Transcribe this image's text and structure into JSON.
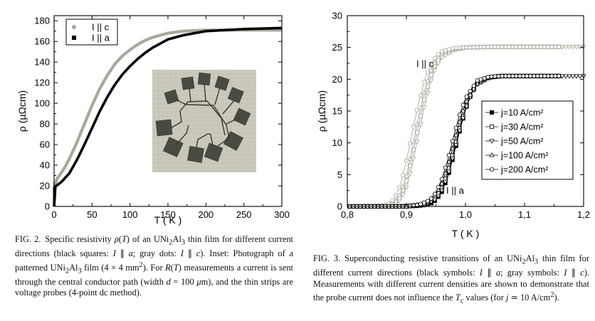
{
  "figures": {
    "fig2": {
      "label": "FIG. 2.",
      "caption_html": "Specific resistivity <i>ρ</i>(<i>T</i>) of an UNi<sub>2</sub>Al<sub>3</sub> thin film for different current directions (black squares: <i>I</i> ∥ <i>a</i>; gray dots: <i>I</i> ∥ <i>c</i>). Inset: Photograph of a patterned UNi<sub>2</sub>Al<sub>3</sub> film (4 × 4 mm<sup>2</sup>). For <i>R</i>(<i>T</i>) measurements a current is sent through the central conductor path (width <i>d</i> = 100 <i>μ</i>m), and the thin strips are voltage probes (4-point dc method)."
    },
    "fig3": {
      "label": "FIG. 3.",
      "caption_html": "Superconducting resistive transitions of an UNi<sub>2</sub>Al<sub>3</sub> thin film for different current directions (black symbols: <i>I</i> ∥ <i>a</i>; gray symbols: <i>I</i> ∥ <i>c</i>). Measurements with different current densities are shown to demonstrate that the probe current does not influence the <i>T</i><sub>c</sub> values (for <i>j</i> ≃ 10 A/cm<sup>2</sup>)."
    }
  },
  "colors": {
    "black": "#000000",
    "gray": "#a8a99a"
  },
  "chart_data": [
    {
      "type": "line",
      "xlabel": "T ( K )",
      "ylabel": "ρ (µΩcm)",
      "xlim": [
        0,
        300
      ],
      "ylim": [
        0,
        185
      ],
      "xticks": [
        "0",
        "50",
        "100",
        "150",
        "200",
        "250",
        "300"
      ],
      "yticks": [
        "0",
        "20",
        "40",
        "60",
        "80",
        "100",
        "120",
        "140",
        "160",
        "180"
      ],
      "legend_position": "top-left",
      "series": [
        {
          "name": "I || c",
          "marker": "circle",
          "color": "#a8a99a",
          "x": [
            0,
            2,
            5,
            10,
            15,
            20,
            30,
            40,
            50,
            60,
            70,
            80,
            90,
            100,
            110,
            120,
            130,
            140,
            150,
            170,
            200,
            250,
            300
          ],
          "y": [
            0,
            24,
            28,
            33,
            39,
            46,
            62,
            80,
            98,
            114,
            127,
            138,
            146,
            152,
            157,
            161,
            164,
            166,
            168,
            170,
            171,
            171,
            171
          ]
        },
        {
          "name": "I || a",
          "marker": "square",
          "color": "#000000",
          "x": [
            0,
            1,
            5,
            10,
            20,
            30,
            40,
            50,
            60,
            70,
            80,
            90,
            100,
            110,
            120,
            130,
            140,
            150,
            170,
            200,
            250,
            300
          ],
          "y": [
            0,
            19,
            21,
            24,
            32,
            45,
            60,
            76,
            92,
            106,
            118,
            128,
            136,
            143,
            149,
            154,
            158,
            162,
            166,
            170,
            172,
            173
          ]
        }
      ]
    },
    {
      "type": "line",
      "xlabel": "T ( K )",
      "ylabel": "ρ (µΩcm)",
      "xlim": [
        0.8,
        1.2
      ],
      "ylim": [
        0,
        30
      ],
      "xticks": [
        "0,8",
        "0,9",
        "1,0",
        "1,1",
        "1,2"
      ],
      "yticks": [
        "0",
        "5",
        "10",
        "15",
        "20",
        "25",
        "30"
      ],
      "legend_position": "center-right",
      "annotations": [
        "I || c",
        "I || a"
      ],
      "series": [
        {
          "name": "j=10 A/cm²",
          "marker": "square-filled",
          "group": "I || a",
          "x": [
            0.8,
            0.88,
            0.92,
            0.94,
            0.95,
            0.96,
            0.97,
            0.98,
            0.99,
            1.0,
            1.01,
            1.02,
            1.04,
            1.06,
            1.1,
            1.16
          ],
          "y": [
            0.0,
            0.0,
            0.1,
            0.4,
            1.0,
            2.3,
            4.6,
            8.0,
            11.8,
            15.2,
            17.8,
            19.3,
            20.3,
            20.5,
            20.5,
            20.5
          ]
        },
        {
          "name": "j=30 A/cm²",
          "marker": "square-open",
          "group": "I || c",
          "x": [
            0.8,
            0.87,
            0.88,
            0.89,
            0.9,
            0.91,
            0.92,
            0.93,
            0.94,
            0.95,
            0.96,
            0.98,
            1.0,
            1.05,
            1.1,
            1.16
          ],
          "y": [
            0.0,
            0.1,
            0.5,
            1.6,
            4.0,
            8.0,
            12.5,
            16.8,
            20.2,
            22.5,
            23.8,
            24.7,
            25.0,
            25.1,
            25.1,
            25.1
          ]
        },
        {
          "name": "j=50 A/cm²",
          "marker": "triangle-down-open",
          "group": "I || c",
          "x": [
            0.8,
            0.87,
            0.88,
            0.89,
            0.9,
            0.91,
            0.92,
            0.93,
            0.94,
            0.95,
            0.96,
            0.98,
            1.0,
            1.05,
            1.1,
            1.2
          ],
          "y": [
            0.0,
            0.0,
            0.3,
            1.1,
            3.0,
            6.6,
            11.1,
            15.6,
            19.3,
            21.9,
            23.4,
            24.6,
            25.0,
            25.1,
            25.1,
            25.1
          ]
        },
        {
          "name": "j=100 A/cm²",
          "marker": "triangle-up-open",
          "group": "I || c",
          "x": [
            0.8,
            0.87,
            0.88,
            0.89,
            0.9,
            0.91,
            0.92,
            0.93,
            0.94,
            0.95,
            0.96,
            0.98,
            1.0,
            1.05,
            1.1,
            1.16
          ],
          "y": [
            0.0,
            0.1,
            0.6,
            2.0,
            4.8,
            9.2,
            13.8,
            17.9,
            21.0,
            23.0,
            24.1,
            24.8,
            25.0,
            25.1,
            25.1,
            25.1
          ]
        },
        {
          "name": "j=200 A/cm²",
          "marker": "circle-open",
          "group": "I || c",
          "x": [
            0.8,
            0.86,
            0.87,
            0.88,
            0.89,
            0.9,
            0.91,
            0.92,
            0.93,
            0.94,
            0.95,
            0.96,
            0.98,
            1.0,
            1.05,
            1.16
          ],
          "y": [
            0.0,
            0.1,
            0.4,
            1.3,
            3.4,
            7.2,
            11.7,
            16.0,
            19.6,
            22.1,
            23.6,
            24.4,
            24.9,
            25.0,
            25.1,
            25.1
          ]
        }
      ]
    }
  ],
  "fig3_extra": {
    "a_direction_open_series": [
      {
        "marker": "square-open",
        "x": [
          0.8,
          0.9,
          0.93,
          0.95,
          0.96,
          0.97,
          0.98,
          0.99,
          1.0,
          1.01,
          1.02,
          1.04,
          1.06,
          1.1,
          1.16
        ],
        "y": [
          0.0,
          0.0,
          0.3,
          1.4,
          2.9,
          5.3,
          8.7,
          12.3,
          15.4,
          17.9,
          19.3,
          20.3,
          20.5,
          20.5,
          20.5
        ]
      },
      {
        "marker": "triangle-down-open",
        "x": [
          0.8,
          0.9,
          0.93,
          0.95,
          0.96,
          0.97,
          0.98,
          0.99,
          1.0,
          1.01,
          1.02,
          1.04,
          1.06,
          1.1,
          1.2
        ],
        "y": [
          0.0,
          0.0,
          0.2,
          1.1,
          2.5,
          4.8,
          8.2,
          11.9,
          15.2,
          17.7,
          19.2,
          20.3,
          20.5,
          20.5,
          20.5
        ]
      },
      {
        "marker": "triangle-up-open",
        "x": [
          0.8,
          0.9,
          0.93,
          0.94,
          0.95,
          0.96,
          0.97,
          0.98,
          0.99,
          1.0,
          1.02,
          1.04,
          1.06,
          1.1,
          1.16
        ],
        "y": [
          0.0,
          0.0,
          0.4,
          0.9,
          1.9,
          3.6,
          6.3,
          9.8,
          13.3,
          16.2,
          19.6,
          20.3,
          20.5,
          20.5,
          20.5
        ]
      },
      {
        "marker": "circle-open",
        "x": [
          0.8,
          0.9,
          0.92,
          0.94,
          0.95,
          0.96,
          0.97,
          0.98,
          0.99,
          1.0,
          1.02,
          1.04,
          1.06,
          1.1,
          1.16
        ],
        "y": [
          0.0,
          0.0,
          0.2,
          1.0,
          2.2,
          4.3,
          7.3,
          11.0,
          14.4,
          17.0,
          19.8,
          20.4,
          20.5,
          20.5,
          20.5
        ]
      }
    ]
  }
}
